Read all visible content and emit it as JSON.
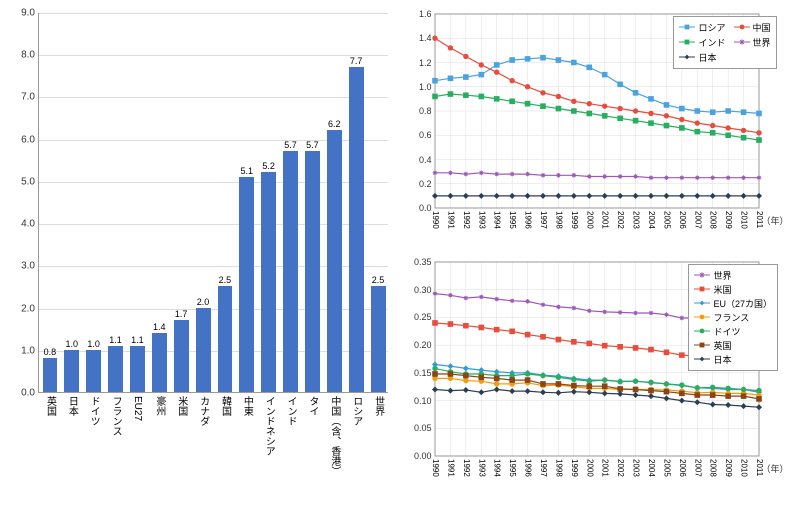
{
  "bar_chart": {
    "type": "bar",
    "ylim": [
      0,
      9.0
    ],
    "ytick_step": 1.0,
    "bar_color": "#4472c4",
    "grid_color": "#dddddd",
    "categories": [
      "英国",
      "日本",
      "ドイツ",
      "フランス",
      "EU27",
      "豪州",
      "米国",
      "カナダ",
      "韓国",
      "中東",
      "インドネシア",
      "インド",
      "タイ",
      "中国（含、香港）",
      "ロシア",
      "世界"
    ],
    "values": [
      0.8,
      1.0,
      1.0,
      1.1,
      1.1,
      1.4,
      1.7,
      2.0,
      2.5,
      5.1,
      5.2,
      5.7,
      5.7,
      6.2,
      7.7,
      2.5
    ]
  },
  "line_chart_top": {
    "type": "line",
    "ylim": [
      0,
      1.6
    ],
    "ytick_step": 0.2,
    "years": [
      1990,
      1991,
      1992,
      1993,
      1994,
      1995,
      1996,
      1997,
      1998,
      1999,
      2000,
      2001,
      2002,
      2003,
      2004,
      2005,
      2006,
      2007,
      2008,
      2009,
      2010,
      2011
    ],
    "x_axis_label": "（年）",
    "grid_color": "#dddddd",
    "series": [
      {
        "name": "ロシア",
        "color": "#4aa3df",
        "marker": "square",
        "data": [
          1.05,
          1.07,
          1.08,
          1.1,
          1.18,
          1.22,
          1.23,
          1.24,
          1.22,
          1.2,
          1.16,
          1.1,
          1.02,
          0.95,
          0.9,
          0.85,
          0.82,
          0.8,
          0.79,
          0.8,
          0.79,
          0.78
        ]
      },
      {
        "name": "中国",
        "color": "#e74c3c",
        "marker": "circle",
        "data": [
          1.4,
          1.32,
          1.25,
          1.18,
          1.12,
          1.05,
          1.0,
          0.95,
          0.92,
          0.88,
          0.86,
          0.84,
          0.82,
          0.8,
          0.78,
          0.76,
          0.73,
          0.7,
          0.68,
          0.66,
          0.64,
          0.62
        ]
      },
      {
        "name": "インド",
        "color": "#27ae60",
        "marker": "square",
        "data": [
          0.92,
          0.94,
          0.93,
          0.92,
          0.9,
          0.88,
          0.86,
          0.84,
          0.82,
          0.8,
          0.78,
          0.76,
          0.74,
          0.72,
          0.7,
          0.68,
          0.66,
          0.63,
          0.62,
          0.6,
          0.58,
          0.56
        ]
      },
      {
        "name": "世界",
        "color": "#9b59b6",
        "marker": "star",
        "data": [
          0.29,
          0.29,
          0.28,
          0.29,
          0.28,
          0.28,
          0.28,
          0.27,
          0.27,
          0.27,
          0.26,
          0.26,
          0.26,
          0.26,
          0.25,
          0.25,
          0.25,
          0.25,
          0.25,
          0.25,
          0.25,
          0.25
        ]
      },
      {
        "name": "日本",
        "color": "#2c3e50",
        "marker": "diamond",
        "data": [
          0.1,
          0.1,
          0.1,
          0.1,
          0.1,
          0.1,
          0.1,
          0.1,
          0.1,
          0.1,
          0.1,
          0.1,
          0.1,
          0.1,
          0.1,
          0.1,
          0.1,
          0.1,
          0.1,
          0.1,
          0.1,
          0.1
        ]
      }
    ]
  },
  "line_chart_bottom": {
    "type": "line",
    "ylim": [
      0,
      0.35
    ],
    "yticks": [
      0.0,
      0.05,
      0.1,
      0.15,
      0.2,
      0.25,
      0.3,
      0.35
    ],
    "years": [
      1990,
      1991,
      1992,
      1993,
      1994,
      1995,
      1996,
      1997,
      1998,
      1999,
      2000,
      2001,
      2002,
      2003,
      2004,
      2005,
      2006,
      2007,
      2008,
      2009,
      2010,
      2011
    ],
    "x_axis_label": "（年）",
    "grid_color": "#dddddd",
    "series": [
      {
        "name": "世界",
        "color": "#9b59b6",
        "marker": "star",
        "data": [
          0.293,
          0.29,
          0.285,
          0.287,
          0.283,
          0.28,
          0.279,
          0.273,
          0.269,
          0.267,
          0.262,
          0.26,
          0.259,
          0.258,
          0.258,
          0.255,
          0.249,
          0.249,
          0.248,
          0.25,
          0.249,
          0.247
        ]
      },
      {
        "name": "米国",
        "color": "#e74c3c",
        "marker": "square",
        "data": [
          0.24,
          0.238,
          0.235,
          0.232,
          0.228,
          0.225,
          0.219,
          0.215,
          0.21,
          0.206,
          0.203,
          0.199,
          0.197,
          0.195,
          0.192,
          0.187,
          0.182,
          0.18,
          0.177,
          0.172,
          0.17,
          0.167
        ]
      },
      {
        "name": "EU（27カ国）",
        "color": "#3498db",
        "marker": "diamond",
        "data": [
          0.165,
          0.162,
          0.158,
          0.155,
          0.152,
          0.15,
          0.15,
          0.146,
          0.144,
          0.14,
          0.137,
          0.137,
          0.135,
          0.135,
          0.132,
          0.13,
          0.127,
          0.123,
          0.122,
          0.12,
          0.12,
          0.115
        ]
      },
      {
        "name": "フランス",
        "color": "#f39c12",
        "marker": "circle",
        "data": [
          0.14,
          0.14,
          0.136,
          0.135,
          0.13,
          0.13,
          0.132,
          0.127,
          0.128,
          0.125,
          0.122,
          0.122,
          0.12,
          0.12,
          0.12,
          0.119,
          0.117,
          0.114,
          0.115,
          0.113,
          0.113,
          0.11
        ]
      },
      {
        "name": "ドイツ",
        "color": "#27ae60",
        "marker": "circle",
        "data": [
          0.158,
          0.152,
          0.148,
          0.148,
          0.145,
          0.145,
          0.148,
          0.145,
          0.142,
          0.138,
          0.135,
          0.137,
          0.134,
          0.135,
          0.133,
          0.13,
          0.128,
          0.123,
          0.124,
          0.122,
          0.12,
          0.118
        ]
      },
      {
        "name": "英国",
        "color": "#8b4513",
        "marker": "square",
        "data": [
          0.148,
          0.148,
          0.145,
          0.142,
          0.14,
          0.137,
          0.137,
          0.13,
          0.13,
          0.127,
          0.126,
          0.126,
          0.121,
          0.12,
          0.118,
          0.116,
          0.113,
          0.11,
          0.11,
          0.108,
          0.108,
          0.103
        ]
      },
      {
        "name": "日本",
        "color": "#2c3e50",
        "marker": "diamond",
        "data": [
          0.12,
          0.118,
          0.119,
          0.115,
          0.12,
          0.117,
          0.117,
          0.115,
          0.114,
          0.116,
          0.115,
          0.113,
          0.112,
          0.11,
          0.108,
          0.104,
          0.1,
          0.097,
          0.093,
          0.092,
          0.09,
          0.088
        ]
      }
    ]
  }
}
